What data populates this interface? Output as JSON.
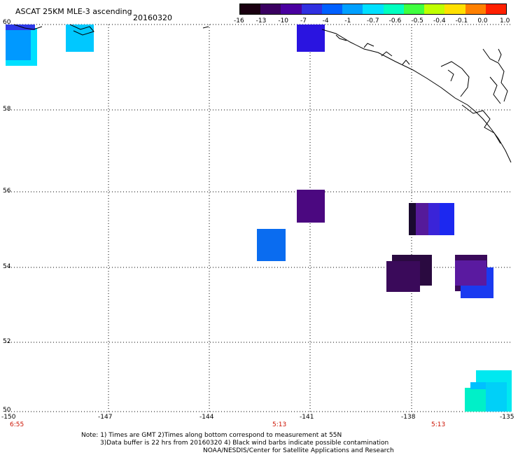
{
  "title": "ASCAT 25KM MLE-3 ascending",
  "date": "20160320",
  "colorbar": {
    "labels": [
      "-16",
      "-13",
      "-10",
      "-7",
      "-4",
      "-1",
      "-0.7",
      "-0.6",
      "-0.5",
      "-0.4",
      "-0.1",
      "0.0",
      "1.0"
    ],
    "colors": [
      "#1a0010",
      "#3a0060",
      "#4a00a0",
      "#3030e0",
      "#0060ff",
      "#00a0ff",
      "#00e0ff",
      "#00ffc0",
      "#40ff40",
      "#c0ff00",
      "#ffe000",
      "#ff8000",
      "#ff2000"
    ]
  },
  "axes": {
    "lat_labels": [
      "60",
      "58",
      "56",
      "54",
      "52",
      "50"
    ],
    "lon_labels": [
      "-150",
      "-147",
      "-144",
      "-141",
      "-138",
      "-135"
    ],
    "lat_range": [
      50,
      60
    ],
    "lon_range": [
      -150,
      -135
    ]
  },
  "times": [
    "6:55",
    "5:13",
    "5:13"
  ],
  "notes": [
    "Note: 1) Times are GMT 2)Times along bottom correspond to measurement at 55N",
    "3)Data buffer is 22 hrs from 20160320 4) Black wind barbs indicate possible contamination",
    "NOAA/NESDIS/Center for Satellite Applications and Research"
  ]
}
